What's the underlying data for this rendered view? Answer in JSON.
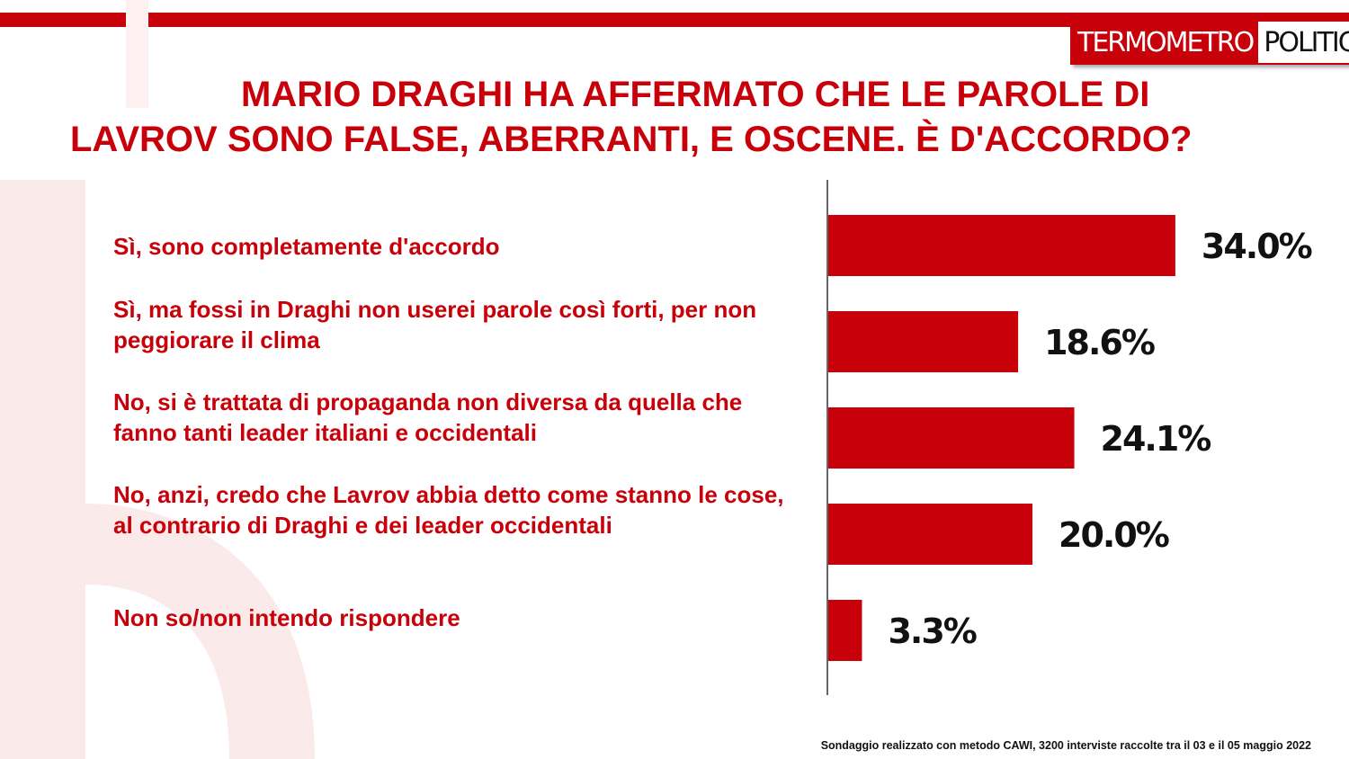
{
  "brand": {
    "part1": "TERMOMETRO",
    "part2": "POLITICO",
    "accent": "#c8000a"
  },
  "chart_data": {
    "type": "bar",
    "orientation": "horizontal",
    "title_line1": "MARIO DRAGHI HA AFFERMATO CHE LE PAROLE DI",
    "title_line2": "LAVROV SONO FALSE, ABERRANTI, E OSCENE. È D'ACCORDO?",
    "categories": [
      "Sì, sono completamente d'accordo",
      "Sì, ma fossi in Draghi non userei parole così forti, per non peggiorare il clima",
      "No, si è trattata di propaganda non diversa da quella che fanno tanti leader italiani e occidentali",
      "No, anzi, credo che Lavrov abbia detto come stanno le cose, al contrario di Draghi e dei leader occidentali",
      "Non so/non intendo rispondere"
    ],
    "values": [
      34.0,
      18.6,
      24.1,
      20.0,
      3.3
    ],
    "value_labels": [
      "34.0%",
      "18.6%",
      "24.1%",
      "20.0%",
      "3.3%"
    ],
    "xlim": [
      0,
      40
    ],
    "grid": false,
    "bar_color": "#c8000a"
  },
  "footer": "Sondaggio realizzato con metodo CAWI, 3200 interviste raccolte tra il 03 e il 05 maggio 2022"
}
